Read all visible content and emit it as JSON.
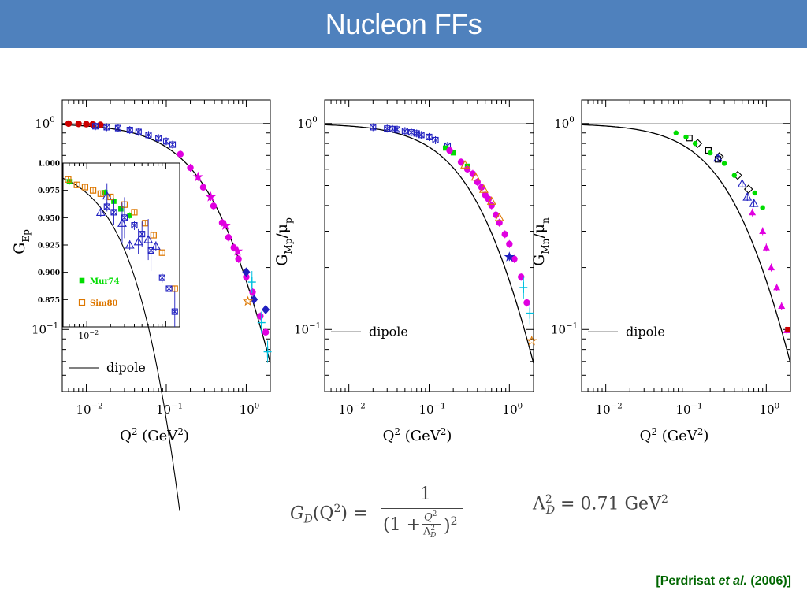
{
  "slide": {
    "title": "Nucleon FFs",
    "citation": {
      "pre": "[Perdrisat ",
      "em": "et al.",
      "post": " (2006)]"
    },
    "formula": {
      "lhs": "G",
      "lhs_sub": "D",
      "lhs_arg": "(Q",
      "lhs_sup": "2",
      "lhs_close": ") =",
      "numerator": "1",
      "den_open": "(1 +",
      "den_frac_num": "Q",
      "den_frac_num_sup": "2",
      "den_frac_den": "Λ",
      "den_frac_den_sup": "2",
      "den_frac_den_sub": "D",
      "den_close": ")",
      "den_close_sup": "2",
      "lambda_symbol": "Λ",
      "lambda_sup": "2",
      "lambda_sub": "D",
      "lambda_value": "= 0.71 GeV",
      "lambda_value_sup": "2"
    }
  },
  "colors": {
    "title_bg": "#4f81bd",
    "title_text": "#ffffff",
    "citation": "#006600",
    "magenta": "#e000e0",
    "blue": "#2020c0",
    "cyan": "#00c0e0",
    "green": "#00dd00",
    "orange": "#dd7700",
    "red": "#cc0000",
    "black": "#000000"
  },
  "chart_data": [
    {
      "type": "scatter",
      "xscale": "log",
      "yscale": "log",
      "xlim": [
        0.005,
        2
      ],
      "ylim": [
        0.05,
        1.3
      ],
      "xlabel": "Q",
      "xlabel_sup": "2",
      "xlabel_unit": "(GeV",
      "xlabel_unit_sup": "2",
      "xlabel_close": ")",
      "ylabel": "G",
      "ylabel_sub": "Ep",
      "ylabel_suffix": "",
      "ylabel_suffix_sub": "",
      "xticks": [
        {
          "v": 0.01,
          "base": "10",
          "exp": "−2"
        },
        {
          "v": 0.1,
          "base": "10",
          "exp": "−1"
        },
        {
          "v": 1,
          "base": "10",
          "exp": "0"
        }
      ],
      "yticks": [
        {
          "v": 1,
          "base": "10",
          "exp": "0"
        },
        {
          "v": 0.1,
          "base": "10",
          "exp": "−1"
        }
      ],
      "reference_line": 1,
      "curve": "dipole",
      "legend": {
        "label": "dipole",
        "placement": "bottom-left"
      },
      "series": [
        {
          "color": "magenta",
          "marker": "circle",
          "x": [
            0.15,
            0.2,
            0.29,
            0.39,
            0.5,
            0.6,
            0.7,
            0.8,
            1.0,
            1.2,
            1.5,
            1.75
          ],
          "y": [
            0.71,
            0.61,
            0.49,
            0.398,
            0.33,
            0.28,
            0.25,
            0.22,
            0.18,
            0.152,
            0.116,
            0.097
          ]
        },
        {
          "color": "magenta",
          "marker": "star",
          "x": [
            0.25,
            0.36,
            0.55,
            0.78
          ],
          "y": [
            0.55,
            0.44,
            0.32,
            0.24
          ]
        },
        {
          "color": "blue",
          "marker": "diamond",
          "x": [
            1.0,
            1.25,
            1.75
          ],
          "y": [
            0.19,
            0.14,
            0.125
          ]
        },
        {
          "color": "cyan",
          "marker": "cross",
          "x": [
            1.18,
            1.55,
            1.85
          ],
          "y": [
            0.17,
            0.108,
            0.078
          ]
        },
        {
          "color": "orange",
          "marker": "star",
          "x": [
            1.05
          ],
          "y": [
            0.137
          ]
        },
        {
          "color": "red",
          "marker": "circle",
          "x": [
            0.006,
            0.008,
            0.01,
            0.012,
            0.015
          ],
          "y": [
            0.999,
            0.996,
            0.993,
            0.99,
            0.985
          ]
        },
        {
          "color": "orange",
          "marker": "square",
          "x": [
            0.0065,
            0.009,
            0.011,
            0.014,
            0.017
          ],
          "y": [
            0.998,
            0.994,
            0.99,
            0.988,
            0.984
          ]
        },
        {
          "color": "blue",
          "marker": "square-x",
          "x": [
            0.013,
            0.018,
            0.025,
            0.035,
            0.045,
            0.06,
            0.08,
            0.1,
            0.12
          ],
          "y": [
            0.97,
            0.96,
            0.95,
            0.93,
            0.91,
            0.88,
            0.85,
            0.82,
            0.79
          ]
        }
      ],
      "inset": {
        "xscale": "log",
        "xlim": [
          0.005,
          0.15
        ],
        "ylim": [
          0.85,
          1.0
        ],
        "xticks": [
          {
            "v": 0.01,
            "base": "10",
            "exp": "−2"
          }
        ],
        "yticks": [
          "1.000",
          "0.975",
          "0.950",
          "0.925",
          "0.900",
          "0.875"
        ],
        "yticks_values": [
          1.0,
          0.975,
          0.95,
          0.925,
          0.9,
          0.875
        ],
        "legend": [
          {
            "label": "Mur74",
            "color": "green",
            "marker": "square-filled"
          },
          {
            "label": "Sim80",
            "color": "orange",
            "marker": "square-open"
          }
        ],
        "series": [
          {
            "color": "green",
            "marker": "square-filled",
            "x": [
              0.006,
              0.017,
              0.022,
              0.027,
              0.035
            ],
            "y": [
              0.983,
              0.973,
              0.965,
              0.958,
              0.952
            ]
          },
          {
            "color": "orange",
            "marker": "square-open",
            "x": [
              0.0058,
              0.0075,
              0.0095,
              0.012,
              0.015,
              0.02,
              0.03,
              0.04,
              0.055,
              0.07,
              0.09,
              0.13
            ],
            "y": [
              0.985,
              0.98,
              0.978,
              0.975,
              0.972,
              0.969,
              0.962,
              0.955,
              0.945,
              0.934,
              0.918,
              0.885
            ]
          },
          {
            "color": "blue",
            "marker": "triangle",
            "x": [
              0.015,
              0.018,
              0.028,
              0.035,
              0.045,
              0.06,
              0.075
            ],
            "y": [
              0.955,
              0.97,
              0.945,
              0.925,
              0.928,
              0.93,
              0.924
            ]
          },
          {
            "color": "blue",
            "marker": "square-x",
            "x": [
              0.018,
              0.022,
              0.03,
              0.04,
              0.05,
              0.065,
              0.09,
              0.11,
              0.13
            ],
            "y": [
              0.96,
              0.955,
              0.95,
              0.943,
              0.935,
              0.92,
              0.895,
              0.885,
              0.864
            ]
          }
        ]
      }
    },
    {
      "type": "scatter",
      "xscale": "log",
      "yscale": "log",
      "xlim": [
        0.005,
        2
      ],
      "ylim": [
        0.05,
        1.3
      ],
      "xlabel": "Q",
      "xlabel_sup": "2",
      "xlabel_unit": "(GeV",
      "xlabel_unit_sup": "2",
      "xlabel_close": ")",
      "ylabel": "G",
      "ylabel_sub": "Mp",
      "ylabel_suffix": "/μ",
      "ylabel_suffix_sub": "p",
      "xticks": [
        {
          "v": 0.01,
          "base": "10",
          "exp": "−2"
        },
        {
          "v": 0.1,
          "base": "10",
          "exp": "−1"
        },
        {
          "v": 1,
          "base": "10",
          "exp": "0"
        }
      ],
      "yticks": [
        {
          "v": 1,
          "base": "10",
          "exp": "0"
        },
        {
          "v": 0.1,
          "base": "10",
          "exp": "−1"
        }
      ],
      "reference_line": 1,
      "curve": "dipole",
      "legend": {
        "label": "dipole",
        "placement": "left"
      },
      "series": [
        {
          "color": "blue",
          "marker": "square-x",
          "x": [
            0.02,
            0.03,
            0.035,
            0.04,
            0.05,
            0.06,
            0.07,
            0.08,
            0.1,
            0.12,
            0.17
          ],
          "y": [
            0.96,
            0.945,
            0.94,
            0.935,
            0.92,
            0.905,
            0.895,
            0.88,
            0.86,
            0.83,
            0.78
          ]
        },
        {
          "color": "green",
          "marker": "square-filled",
          "x": [
            0.16,
            0.2,
            0.3
          ],
          "y": [
            0.76,
            0.72,
            0.62
          ]
        },
        {
          "color": "magenta",
          "marker": "circle",
          "x": [
            0.18,
            0.25,
            0.3,
            0.35,
            0.4,
            0.45,
            0.5,
            0.55,
            0.6,
            0.68,
            0.75,
            0.88,
            1.0,
            1.15,
            1.4,
            1.65
          ],
          "y": [
            0.74,
            0.65,
            0.6,
            0.57,
            0.52,
            0.49,
            0.45,
            0.43,
            0.4,
            0.36,
            0.33,
            0.29,
            0.26,
            0.22,
            0.18,
            0.135
          ]
        },
        {
          "color": "orange",
          "marker": "triangle",
          "x": [
            0.28,
            0.38,
            0.48,
            0.6,
            0.75
          ],
          "y": [
            0.63,
            0.55,
            0.48,
            0.42,
            0.35
          ]
        },
        {
          "color": "blue",
          "marker": "star",
          "x": [
            1.0
          ],
          "y": [
            0.225
          ]
        },
        {
          "color": "cyan",
          "marker": "cross",
          "x": [
            1.5,
            1.8
          ],
          "y": [
            0.16,
            0.12
          ]
        },
        {
          "color": "orange",
          "marker": "star",
          "x": [
            1.9
          ],
          "y": [
            0.088
          ]
        }
      ]
    },
    {
      "type": "scatter",
      "xscale": "log",
      "yscale": "log",
      "xlim": [
        0.005,
        2
      ],
      "ylim": [
        0.05,
        1.3
      ],
      "xlabel": "Q",
      "xlabel_sup": "2",
      "xlabel_unit": "(GeV",
      "xlabel_unit_sup": "2",
      "xlabel_close": ")",
      "ylabel": "G",
      "ylabel_sub": "Mn",
      "ylabel_suffix": "/μ",
      "ylabel_suffix_sub": "n",
      "xticks": [
        {
          "v": 0.01,
          "base": "10",
          "exp": "−2"
        },
        {
          "v": 0.1,
          "base": "10",
          "exp": "−1"
        },
        {
          "v": 1,
          "base": "10",
          "exp": "0"
        }
      ],
      "yticks": [
        {
          "v": 1,
          "base": "10",
          "exp": "0"
        },
        {
          "v": 0.1,
          "base": "10",
          "exp": "−1"
        }
      ],
      "reference_line": 1,
      "curve": "dipole",
      "legend": {
        "label": "dipole",
        "placement": "left"
      },
      "series": [
        {
          "color": "black",
          "marker": "square-open",
          "x": [
            0.11,
            0.19,
            0.25
          ],
          "y": [
            0.85,
            0.74,
            0.67
          ]
        },
        {
          "color": "black",
          "marker": "diamond-open",
          "x": [
            0.14,
            0.26,
            0.44,
            0.6
          ],
          "y": [
            0.8,
            0.69,
            0.56,
            0.48
          ]
        },
        {
          "color": "green",
          "marker": "circle-green",
          "x": [
            0.075,
            0.1,
            0.13,
            0.2,
            0.3,
            0.4,
            0.72,
            0.9
          ],
          "y": [
            0.9,
            0.86,
            0.8,
            0.72,
            0.64,
            0.56,
            0.46,
            0.39
          ]
        },
        {
          "color": "blue",
          "marker": "triangle",
          "x": [
            0.25,
            0.5,
            0.58,
            0.7
          ],
          "y": [
            0.68,
            0.51,
            0.44,
            0.41
          ]
        },
        {
          "color": "magenta",
          "marker": "triangle-filled",
          "x": [
            0.67,
            0.9,
            1.0,
            1.15,
            1.35,
            1.55,
            1.8
          ],
          "y": [
            0.37,
            0.3,
            0.25,
            0.2,
            0.16,
            0.13,
            0.099
          ]
        },
        {
          "color": "red",
          "marker": "square-filled",
          "x": [
            1.85
          ],
          "y": [
            0.1
          ]
        }
      ]
    }
  ]
}
